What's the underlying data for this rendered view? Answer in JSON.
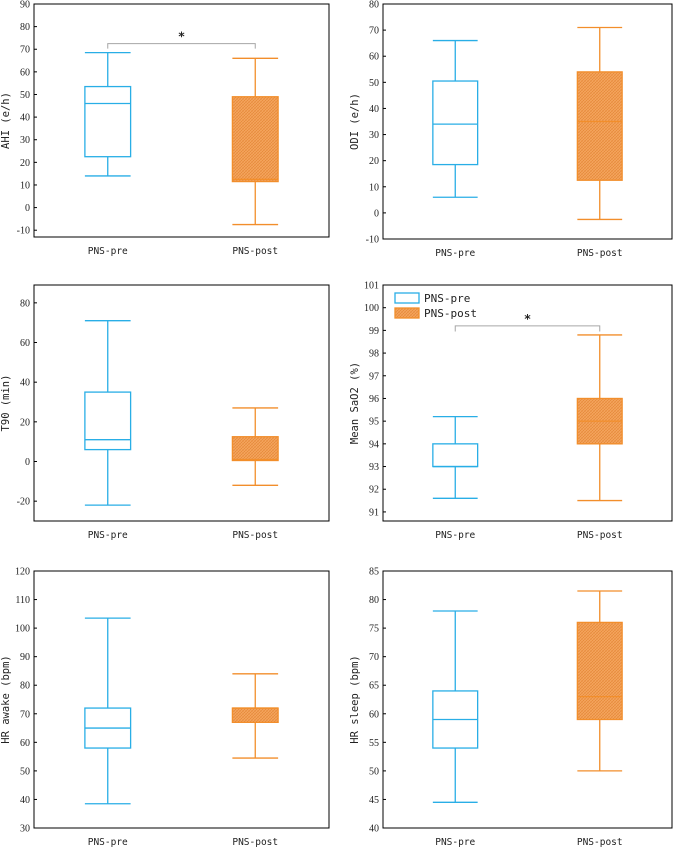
{
  "colors": {
    "pre": "#29aee6",
    "post": "#f28e2b",
    "post_fill": "#f5a55e",
    "bracket": "#a6a6a6"
  },
  "chart_data": [
    {
      "type": "box",
      "ylabel": "AHI (e/h)",
      "ylim": [
        -13,
        90
      ],
      "yticks": [
        -10,
        0,
        10,
        20,
        30,
        40,
        50,
        60,
        70,
        80,
        90
      ],
      "categories": [
        "PNS-pre",
        "PNS-post"
      ],
      "boxes": [
        {
          "name": "PNS-pre",
          "whisker_low": 14,
          "q1": 22.5,
          "median": 46,
          "q3": 53.5,
          "whisker_high": 68.5
        },
        {
          "name": "PNS-post",
          "whisker_low": -7.5,
          "q1": 11.5,
          "median": 12.5,
          "q3": 49,
          "whisker_high": 66
        }
      ],
      "significance": {
        "label": "*",
        "y": 72.5,
        "drop": 2.2
      }
    },
    {
      "type": "box",
      "ylabel": "ODI (e/h)",
      "ylim": [
        -10,
        80
      ],
      "yticks": [
        -10,
        0,
        10,
        20,
        30,
        40,
        50,
        60,
        70,
        80
      ],
      "categories": [
        "PNS-pre",
        "PNS-post"
      ],
      "boxes": [
        {
          "name": "PNS-pre",
          "whisker_low": 6,
          "q1": 18.5,
          "median": 34,
          "q3": 50.5,
          "whisker_high": 66
        },
        {
          "name": "PNS-post",
          "whisker_low": -2.5,
          "q1": 12.5,
          "median": 35,
          "q3": 54,
          "whisker_high": 71
        }
      ]
    },
    {
      "type": "box",
      "ylabel": "T90 (min)",
      "ylim": [
        -30,
        89
      ],
      "yticks": [
        -20,
        0,
        20,
        40,
        60,
        80
      ],
      "categories": [
        "PNS-pre",
        "PNS-post"
      ],
      "boxes": [
        {
          "name": "PNS-pre",
          "whisker_low": -22,
          "q1": 6,
          "median": 11,
          "q3": 35,
          "whisker_high": 71
        },
        {
          "name": "PNS-post",
          "whisker_low": -12,
          "q1": 0.5,
          "median": 1,
          "q3": 12.5,
          "whisker_high": 27
        }
      ]
    },
    {
      "type": "box",
      "ylabel": "Mean SaO2 (%)",
      "ylim": [
        90.6,
        101
      ],
      "yticks": [
        91,
        92,
        93,
        94,
        95,
        96,
        97,
        98,
        99,
        100,
        101
      ],
      "categories": [
        "PNS-pre",
        "PNS-post"
      ],
      "legend": {
        "placement": "top-left",
        "entries": [
          "PNS-pre",
          "PNS-post"
        ]
      },
      "boxes": [
        {
          "name": "PNS-pre",
          "whisker_low": 91.6,
          "q1": 93,
          "median": 93,
          "q3": 94,
          "whisker_high": 95.2
        },
        {
          "name": "PNS-post",
          "whisker_low": 91.5,
          "q1": 94,
          "median": 95,
          "q3": 96,
          "whisker_high": 98.8
        }
      ],
      "significance": {
        "label": "*",
        "y": 99.2,
        "drop": 0.25
      }
    },
    {
      "type": "box",
      "ylabel": "HR awake (bpm)",
      "ylim": [
        30,
        120
      ],
      "yticks": [
        30,
        40,
        50,
        60,
        70,
        80,
        90,
        100,
        110,
        120
      ],
      "categories": [
        "PNS-pre",
        "PNS-post"
      ],
      "boxes": [
        {
          "name": "PNS-pre",
          "whisker_low": 38.5,
          "q1": 58,
          "median": 65,
          "q3": 72,
          "whisker_high": 103.5
        },
        {
          "name": "PNS-post",
          "whisker_low": 54.5,
          "q1": 67,
          "median": 72,
          "q3": 72,
          "whisker_high": 84
        }
      ]
    },
    {
      "type": "box",
      "ylabel": "HR sleep (bpm)",
      "ylim": [
        40,
        85
      ],
      "yticks": [
        40,
        45,
        50,
        55,
        60,
        65,
        70,
        75,
        80,
        85
      ],
      "categories": [
        "PNS-pre",
        "PNS-post"
      ],
      "boxes": [
        {
          "name": "PNS-pre",
          "whisker_low": 44.5,
          "q1": 54,
          "median": 59,
          "q3": 64,
          "whisker_high": 78
        },
        {
          "name": "PNS-post",
          "whisker_low": 50,
          "q1": 59,
          "median": 63,
          "q3": 76,
          "whisker_high": 81.5
        }
      ]
    }
  ]
}
